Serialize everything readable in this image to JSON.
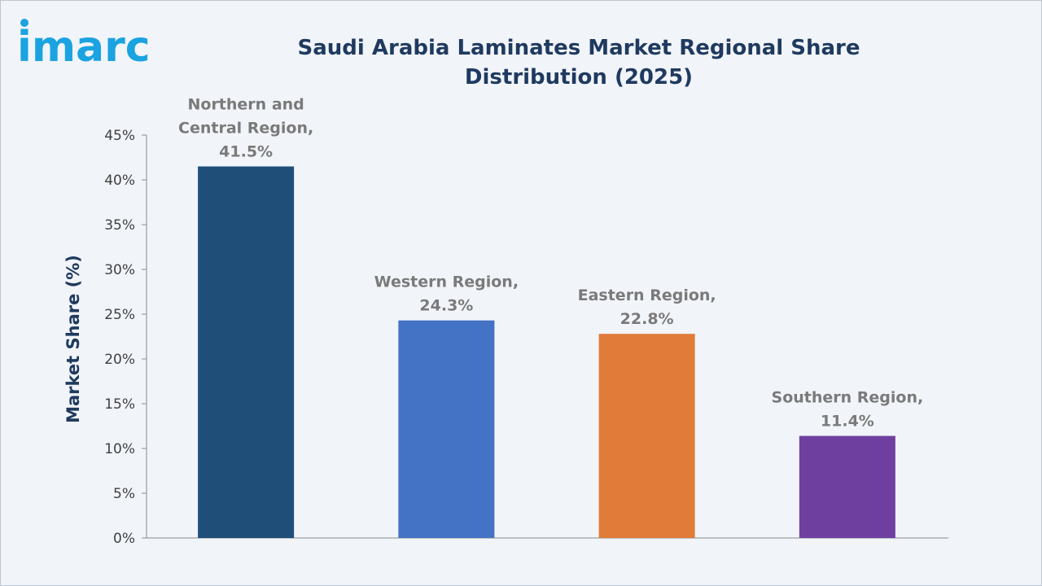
{
  "brand": {
    "name": "imarc",
    "color": "#1aa3e0"
  },
  "chart_data": {
    "type": "bar",
    "title": "Saudi Arabia Laminates Market Regional Share Distribution (2025)",
    "xlabel": "",
    "ylabel": "Market Share (%)",
    "ylim": [
      0,
      45
    ],
    "yticks": [
      0,
      5,
      10,
      15,
      20,
      25,
      30,
      35,
      40,
      45
    ],
    "ytick_suffix": "%",
    "grid": false,
    "categories": [
      "Northern and Central Region",
      "Western Region",
      "Eastern Region",
      "Southern Region"
    ],
    "values": [
      41.5,
      24.3,
      22.8,
      11.4
    ],
    "labels": [
      [
        "Northern and",
        "Central Region,",
        "41.5%"
      ],
      [
        "Western Region,",
        "24.3%"
      ],
      [
        "Eastern Region,",
        "22.8%"
      ],
      [
        "Southern Region,",
        "11.4%"
      ]
    ],
    "colors": [
      "#1f4e79",
      "#4472c4",
      "#e07b39",
      "#6f3fa0"
    ]
  }
}
